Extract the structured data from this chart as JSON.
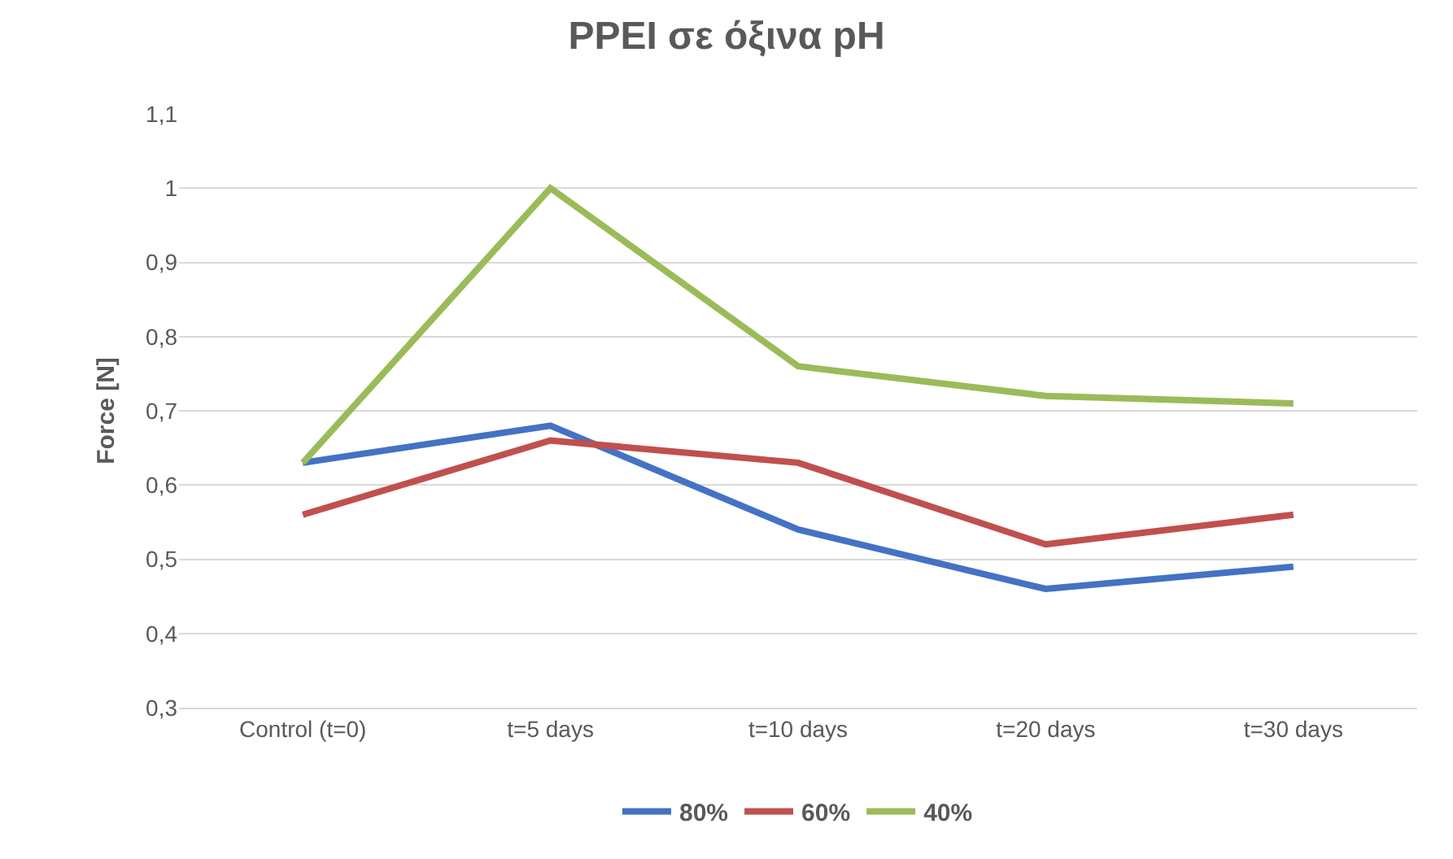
{
  "chart_data": {
    "type": "line",
    "title": "PPEI σε όξινα pH",
    "ylabel": "Force [N]",
    "categories": [
      "Control (t=0)",
      "t=5 days",
      "t=10 days",
      "t=20 days",
      "t=30 days"
    ],
    "series": [
      {
        "name": "80%",
        "color": "#4472c4",
        "values": [
          0.63,
          0.68,
          0.54,
          0.46,
          0.49
        ]
      },
      {
        "name": "60%",
        "color": "#c0504d",
        "values": [
          0.56,
          0.66,
          0.63,
          0.52,
          0.56
        ]
      },
      {
        "name": "40%",
        "color": "#9bbb59",
        "values": [
          0.63,
          1.0,
          0.76,
          0.72,
          0.71
        ]
      }
    ],
    "ylim": [
      0.3,
      1.1
    ],
    "yticks": [
      {
        "value": 0.3,
        "label": "0,3"
      },
      {
        "value": 0.4,
        "label": "0,4"
      },
      {
        "value": 0.5,
        "label": "0,5"
      },
      {
        "value": 0.6,
        "label": "0,6"
      },
      {
        "value": 0.7,
        "label": "0,7"
      },
      {
        "value": 0.8,
        "label": "0,8"
      },
      {
        "value": 0.9,
        "label": "0,9"
      },
      1,
      {
        "value": 1.1,
        "label": "1,1"
      }
    ],
    "grid": "y",
    "legend": "bottom",
    "marker": "none",
    "line_style": "solid"
  }
}
